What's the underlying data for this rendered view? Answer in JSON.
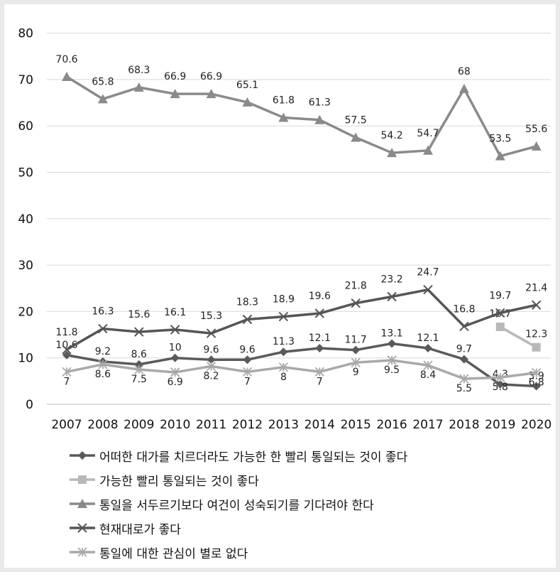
{
  "chart_data": {
    "type": "line",
    "categories": [
      "2007",
      "2008",
      "2009",
      "2010",
      "2011",
      "2012",
      "2013",
      "2014",
      "2015",
      "2016",
      "2017",
      "2018",
      "2019",
      "2020"
    ],
    "ylim": [
      0,
      80
    ],
    "yticks": [
      0,
      10,
      20,
      30,
      40,
      50,
      60,
      70,
      80
    ],
    "grid": true,
    "legend_position": "bottom",
    "series": [
      {
        "name": "어떠한 대가를 치르더라도 가능한 한 빨리 통일되는 것이 좋다",
        "marker": "diamond",
        "color": "#5a5a5a",
        "values": [
          10.6,
          9.2,
          8.6,
          10,
          9.6,
          9.6,
          11.3,
          12.1,
          11.7,
          13.1,
          12.1,
          9.7,
          4.3,
          3.9
        ]
      },
      {
        "name": "가능한 빨리 통일되는 것이 좋다",
        "marker": "square",
        "color": "#b8b8b8",
        "values": [
          null,
          null,
          null,
          null,
          null,
          null,
          null,
          null,
          null,
          null,
          null,
          null,
          16.7,
          12.3
        ]
      },
      {
        "name": "통일을 서두르기보다 여건이 성숙되기를 기다려야 한다",
        "marker": "triangle",
        "color": "#8a8a8a",
        "values": [
          70.6,
          65.8,
          68.3,
          66.9,
          66.9,
          65.1,
          61.8,
          61.3,
          57.5,
          54.2,
          54.7,
          68,
          53.5,
          55.6
        ]
      },
      {
        "name": "현재대로가 좋다",
        "marker": "x",
        "color": "#555555",
        "values": [
          11.8,
          16.3,
          15.6,
          16.1,
          15.3,
          18.3,
          18.9,
          19.6,
          21.8,
          23.2,
          24.7,
          16.8,
          19.7,
          21.4
        ]
      },
      {
        "name": "통일에 대한 관심이 별로 없다",
        "marker": "star",
        "color": "#a9a9a9",
        "values": [
          7,
          8.6,
          7.5,
          6.9,
          8.2,
          7,
          8,
          7,
          9,
          9.5,
          8.4,
          5.5,
          5.8,
          6.8
        ]
      }
    ]
  }
}
